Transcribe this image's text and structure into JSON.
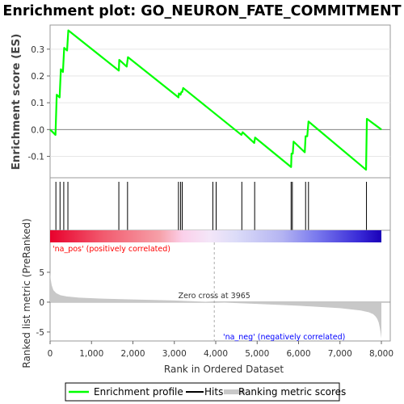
{
  "title": "Enrichment plot: GO_NEURON_FATE_COMMITMENT",
  "colors": {
    "enrichment_line": "#00ff00",
    "hits": "#000000",
    "ranking_fill": "#c8c8c8",
    "pos_label": "#ff0000",
    "neg_label": "#0000ff",
    "zero_cross_line": "#aaaaaa"
  },
  "chart_data": [
    {
      "type": "line",
      "name": "enrichment-profile",
      "ylabel": "Enrichment score (ES)",
      "xlim": [
        0,
        8000
      ],
      "ylim": [
        -0.18,
        0.39
      ],
      "yticks": [
        -0.1,
        0.0,
        0.1,
        0.2,
        0.3
      ],
      "ytick_labels": [
        "-0.1",
        "0.0",
        "0.1",
        "0.2",
        "0.3"
      ],
      "grid": true,
      "x": [
        0,
        130,
        160,
        230,
        260,
        310,
        340,
        410,
        440,
        1660,
        1670,
        1850,
        1880,
        3100,
        3110,
        3150,
        3170,
        3190,
        3215,
        4620,
        4650,
        4930,
        4950,
        5820,
        5830,
        5860,
        5880,
        6150,
        6170,
        6210,
        6240,
        7630,
        7650,
        8000
      ],
      "y": [
        0.0,
        -0.02,
        0.13,
        0.12,
        0.225,
        0.215,
        0.305,
        0.295,
        0.37,
        0.22,
        0.26,
        0.235,
        0.27,
        0.12,
        0.135,
        0.13,
        0.14,
        0.14,
        0.155,
        -0.02,
        -0.01,
        -0.05,
        -0.03,
        -0.14,
        -0.09,
        -0.09,
        -0.045,
        -0.085,
        -0.025,
        -0.025,
        0.03,
        -0.15,
        0.04,
        0.0
      ]
    },
    {
      "type": "bar",
      "name": "hits",
      "x": [
        140,
        240,
        330,
        430,
        1660,
        1870,
        3100,
        3150,
        3190,
        3930,
        4010,
        4630,
        4940,
        5820,
        5850,
        6170,
        6240,
        7640
      ]
    },
    {
      "type": "area",
      "name": "ranked-list-metric",
      "xlabel": "Rank in Ordered Dataset",
      "ylabel": "Ranked list metric (PreRanked)",
      "xlim": [
        0,
        8000
      ],
      "ylim": [
        -6.5,
        10
      ],
      "xticks": [
        0,
        1000,
        2000,
        3000,
        4000,
        5000,
        6000,
        7000,
        8000
      ],
      "xtick_labels": [
        "0",
        "1,000",
        "2,000",
        "3,000",
        "4,000",
        "5,000",
        "6,000",
        "7,000",
        "8,000"
      ],
      "yticks": [
        -5,
        0,
        5
      ],
      "ytick_labels": [
        "-5",
        "0",
        "5"
      ],
      "x": [
        0,
        15,
        40,
        80,
        150,
        250,
        400,
        700,
        1200,
        2000,
        3000,
        3965,
        5000,
        6000,
        7000,
        7500,
        7700,
        7800,
        7860,
        7900,
        7935,
        7960,
        7980,
        7995,
        8000
      ],
      "y": [
        5.0,
        3.8,
        2.8,
        2.0,
        1.5,
        1.15,
        0.95,
        0.75,
        0.6,
        0.45,
        0.28,
        0.0,
        -0.3,
        -0.6,
        -1.0,
        -1.4,
        -1.7,
        -2.0,
        -2.4,
        -2.8,
        -3.4,
        -4.2,
        -5.0,
        -5.8,
        -6.0
      ],
      "zero_cross_x": 3965
    }
  ],
  "annotations": {
    "pos_label": "'na_pos' (positively correlated)",
    "neg_label": "'na_neg' (negatively correlated)",
    "zero_cross": "Zero cross at 3965"
  },
  "legend": {
    "items": [
      {
        "label": "Enrichment profile",
        "color": "#00ff00"
      },
      {
        "label": "Hits",
        "color": "#000000"
      },
      {
        "label": "Ranking metric scores",
        "color": "#c8c8c8"
      }
    ]
  }
}
